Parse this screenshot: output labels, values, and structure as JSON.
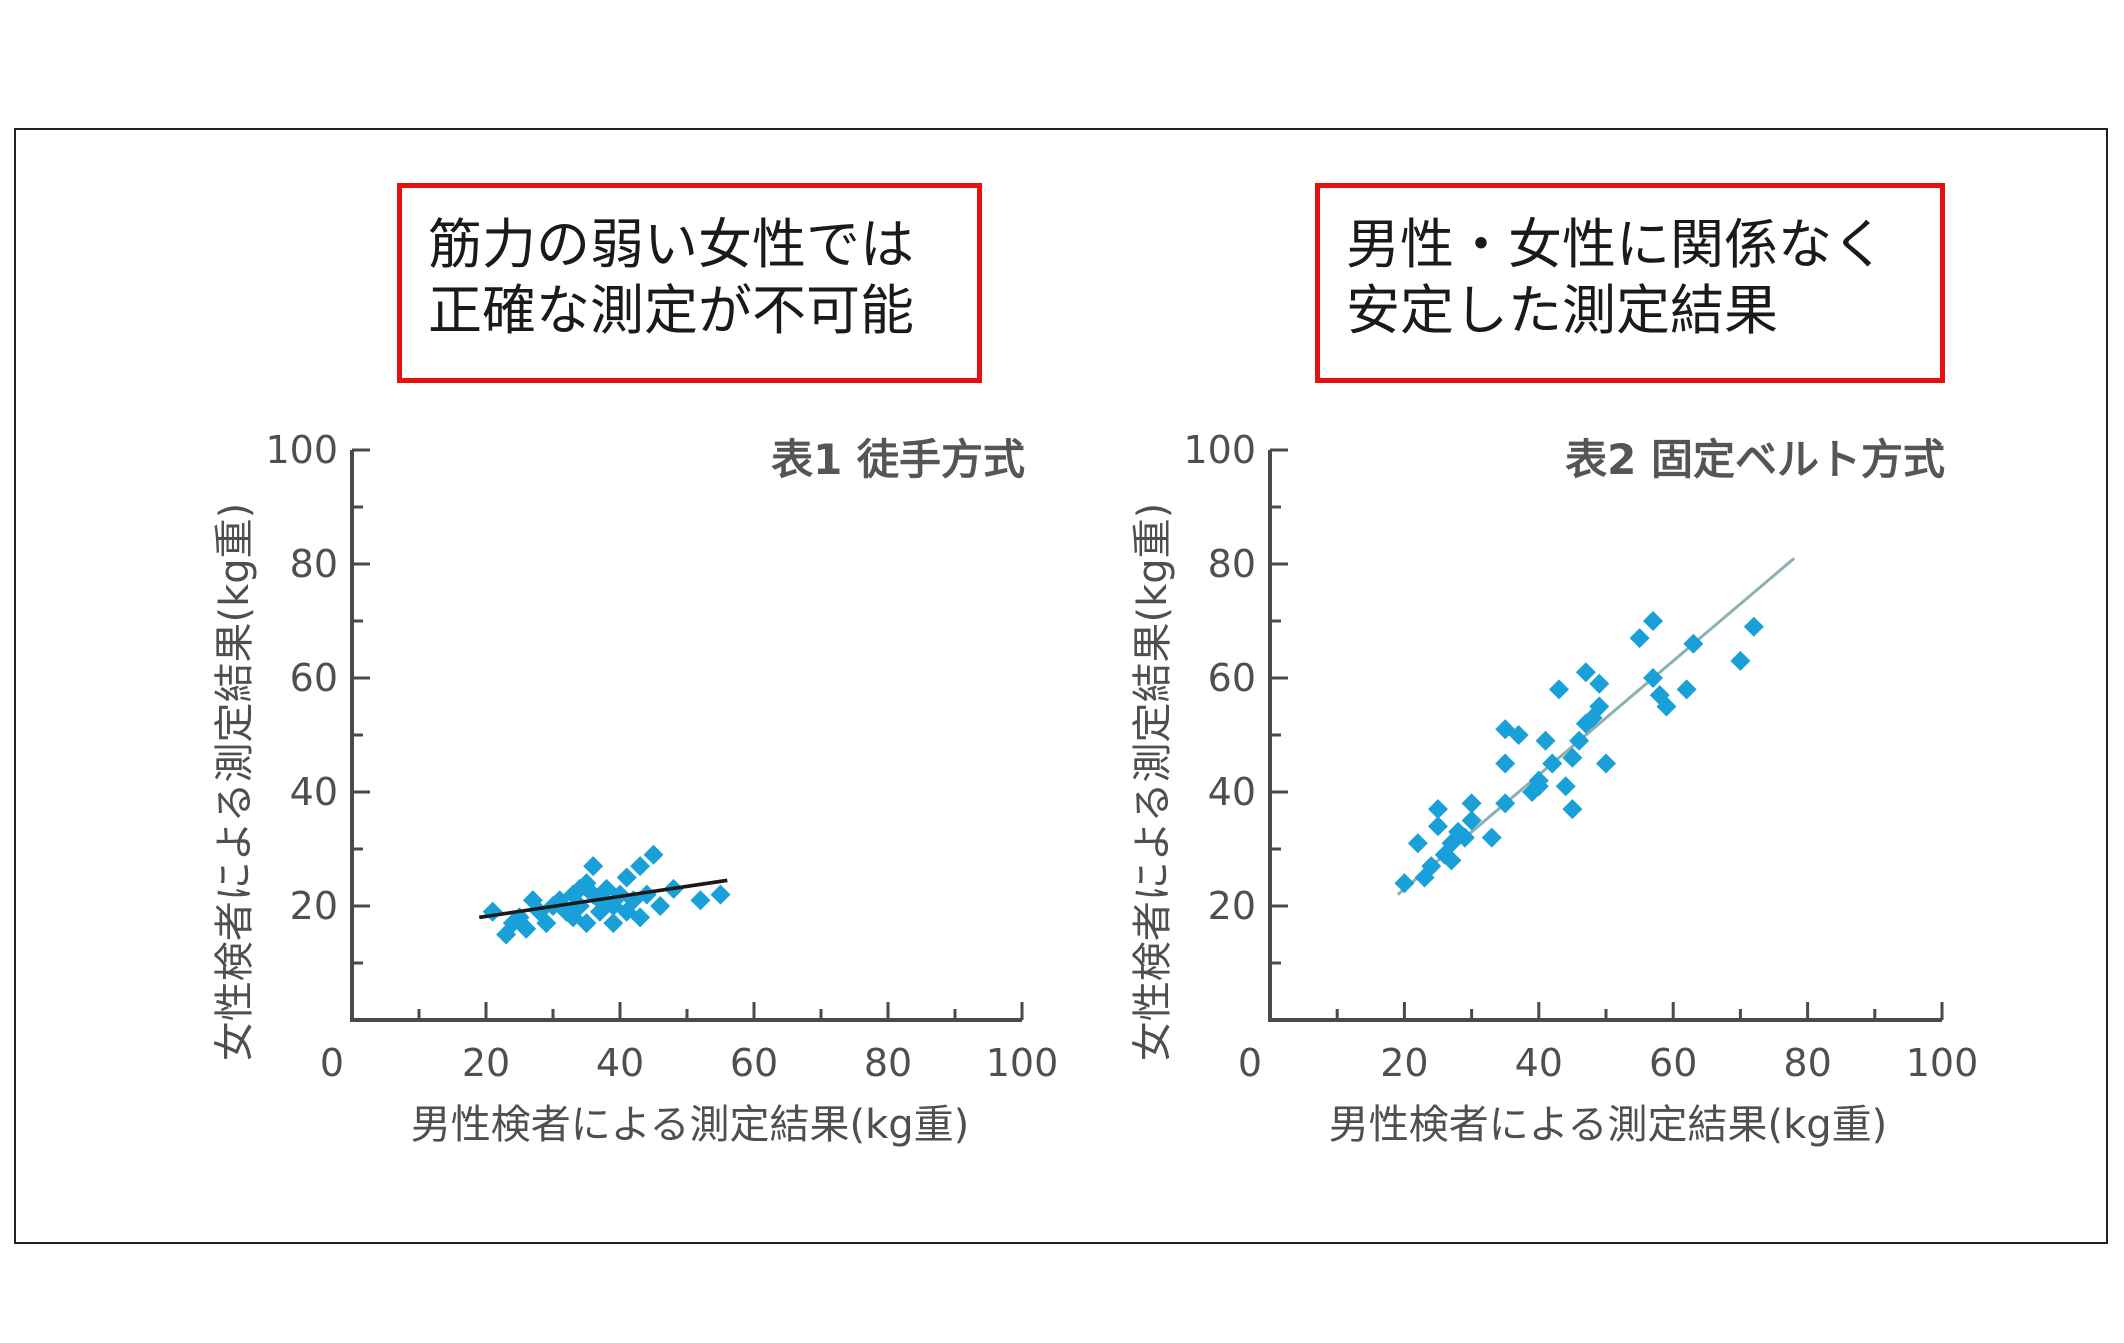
{
  "notes": {
    "left": [
      "筋力の弱い女性では",
      "正確な測定が不可能"
    ],
    "right": [
      "男性・女性に関係なく",
      "安定した測定結果"
    ]
  },
  "colors": {
    "marker": "#1aa0d8",
    "left_trend": "#1a1a1a",
    "right_trend": "#8fb0b0",
    "note_border": "#e8100f"
  },
  "chart_data": [
    {
      "type": "scatter",
      "title": "表1 徒手方式",
      "xlabel": "男性検者による測定結果(kg重)",
      "ylabel": "女性検者による測定結果(kg重)",
      "xlim": [
        0,
        100
      ],
      "ylim": [
        0,
        100
      ],
      "xticks": [
        "0",
        "20",
        "40",
        "60",
        "80",
        "100"
      ],
      "yticks": [
        "20",
        "40",
        "60",
        "80",
        "100"
      ],
      "trend": {
        "x": [
          19,
          56
        ],
        "y": [
          18,
          24.5
        ]
      },
      "points": [
        [
          21,
          19
        ],
        [
          23,
          15
        ],
        [
          24,
          17
        ],
        [
          25,
          18
        ],
        [
          26,
          16
        ],
        [
          27,
          21
        ],
        [
          28,
          19
        ],
        [
          29,
          17
        ],
        [
          30,
          20
        ],
        [
          31,
          21
        ],
        [
          32,
          19
        ],
        [
          33,
          22
        ],
        [
          33,
          18
        ],
        [
          34,
          23
        ],
        [
          34,
          20
        ],
        [
          35,
          24
        ],
        [
          35,
          17
        ],
        [
          36,
          22
        ],
        [
          36,
          27
        ],
        [
          37,
          21
        ],
        [
          37,
          19
        ],
        [
          38,
          23
        ],
        [
          39,
          20
        ],
        [
          39,
          17
        ],
        [
          40,
          22
        ],
        [
          41,
          25
        ],
        [
          41,
          19
        ],
        [
          42,
          21
        ],
        [
          43,
          27
        ],
        [
          43,
          18
        ],
        [
          44,
          22
        ],
        [
          45,
          29
        ],
        [
          46,
          20
        ],
        [
          48,
          23
        ],
        [
          52,
          21
        ],
        [
          55,
          22
        ]
      ]
    },
    {
      "type": "scatter",
      "title": "表2 固定ベルト方式",
      "xlabel": "男性検者による測定結果(kg重)",
      "ylabel": "女性検者による測定結果(kg重)",
      "xlim": [
        0,
        100
      ],
      "ylim": [
        0,
        100
      ],
      "xticks": [
        "0",
        "20",
        "40",
        "60",
        "80",
        "100"
      ],
      "yticks": [
        "20",
        "40",
        "60",
        "80",
        "100"
      ],
      "trend": {
        "x": [
          19,
          78
        ],
        "y": [
          22,
          81
        ]
      },
      "points": [
        [
          20,
          24
        ],
        [
          22,
          31
        ],
        [
          23,
          25
        ],
        [
          24,
          27
        ],
        [
          25,
          37
        ],
        [
          25,
          34
        ],
        [
          26,
          29
        ],
        [
          27,
          31
        ],
        [
          27,
          28
        ],
        [
          28,
          33
        ],
        [
          29,
          32
        ],
        [
          30,
          38
        ],
        [
          30,
          35
        ],
        [
          33,
          32
        ],
        [
          35,
          51
        ],
        [
          35,
          45
        ],
        [
          35,
          38
        ],
        [
          37,
          50
        ],
        [
          39,
          40
        ],
        [
          40,
          42
        ],
        [
          40,
          41
        ],
        [
          41,
          49
        ],
        [
          42,
          45
        ],
        [
          43,
          58
        ],
        [
          44,
          41
        ],
        [
          45,
          46
        ],
        [
          45,
          37
        ],
        [
          46,
          49
        ],
        [
          47,
          61
        ],
        [
          47,
          52
        ],
        [
          48,
          53
        ],
        [
          49,
          55
        ],
        [
          49,
          59
        ],
        [
          50,
          45
        ],
        [
          55,
          67
        ],
        [
          57,
          60
        ],
        [
          57,
          70
        ],
        [
          58,
          57
        ],
        [
          59,
          55
        ],
        [
          62,
          58
        ],
        [
          63,
          66
        ],
        [
          70,
          63
        ],
        [
          72,
          69
        ]
      ]
    }
  ]
}
